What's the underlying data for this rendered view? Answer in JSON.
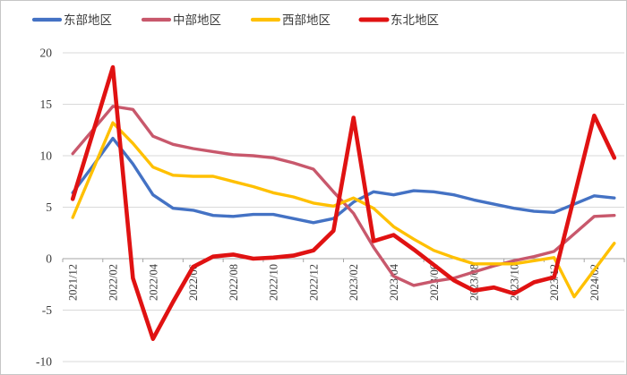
{
  "frame": {
    "background": "#ffffff",
    "border_color": "#c6c6c6"
  },
  "chart_data": {
    "type": "line",
    "title": "",
    "xlabel": "",
    "ylabel": "",
    "grid": "horizontal-only",
    "legend_position": "top",
    "y_axis": {
      "min": -10,
      "max": 20,
      "step": 5,
      "ticks": [
        20,
        15,
        10,
        5,
        0,
        -5,
        -10
      ]
    },
    "x_label_every": 2,
    "x_tick_labels_shown": [
      "2021/12",
      "2022/02",
      "2022/04",
      "2022/06",
      "2022/08",
      "2022/10",
      "2022/12",
      "2023/02",
      "2023/04",
      "2023/06",
      "2023/08",
      "2023/10",
      "2023/12",
      "2024/02"
    ],
    "categories": [
      "2021/12",
      "2022/01",
      "2022/02",
      "2022/03",
      "2022/04",
      "2022/05",
      "2022/06",
      "2022/07",
      "2022/08",
      "2022/09",
      "2022/10",
      "2022/11",
      "2022/12",
      "2023/01",
      "2023/02",
      "2023/03",
      "2023/04",
      "2023/05",
      "2023/06",
      "2023/07",
      "2023/08",
      "2023/09",
      "2023/10",
      "2023/11",
      "2023/12",
      "2024/01",
      "2024/02",
      "2024/03"
    ],
    "series": [
      {
        "name": "东部地区",
        "color": "#4472C4",
        "line_width": 3.4,
        "values": [
          6.4,
          9.0,
          11.7,
          9.2,
          6.2,
          4.9,
          4.7,
          4.2,
          4.1,
          4.3,
          4.3,
          3.9,
          3.5,
          3.9,
          5.5,
          6.5,
          6.2,
          6.6,
          6.5,
          6.2,
          5.7,
          5.3,
          4.9,
          4.6,
          4.5,
          5.3,
          6.1,
          5.9
        ]
      },
      {
        "name": "中部地区",
        "color": "#C8586C",
        "line_width": 3.4,
        "values": [
          10.2,
          12.5,
          14.8,
          14.5,
          11.9,
          11.1,
          10.7,
          10.4,
          10.1,
          10.0,
          9.8,
          9.3,
          8.7,
          6.5,
          4.4,
          1.1,
          -1.7,
          -2.6,
          -2.2,
          -1.9,
          -1.3,
          -0.7,
          -0.2,
          0.2,
          0.7,
          2.4,
          4.1,
          4.2
        ]
      },
      {
        "name": "西部地区",
        "color": "#FFC000",
        "line_width": 3.4,
        "values": [
          4.0,
          8.6,
          13.2,
          11.2,
          8.9,
          8.1,
          8.0,
          8.0,
          7.5,
          7.0,
          6.4,
          6.0,
          5.4,
          5.1,
          5.9,
          4.9,
          3.1,
          1.9,
          0.8,
          0.1,
          -0.5,
          -0.5,
          -0.5,
          -0.2,
          0.1,
          -3.7,
          -1.1,
          1.5
        ]
      },
      {
        "name": "东北地区",
        "color": "#E01212",
        "line_width": 4.6,
        "values": [
          5.8,
          12.2,
          18.6,
          -1.9,
          -7.8,
          -4.2,
          -0.8,
          0.2,
          0.4,
          0.0,
          0.1,
          0.3,
          0.8,
          2.7,
          13.7,
          1.7,
          2.3,
          0.9,
          -0.6,
          -2.1,
          -3.1,
          -2.8,
          -3.4,
          -2.3,
          -1.8,
          6.0,
          13.9,
          9.8
        ]
      }
    ],
    "style": {
      "grid_color": "#D9D9D9",
      "axis_color": "#A6A6A6",
      "text_color": "#3B3B3B",
      "y_label_font_px": 13.5,
      "x_label_font_px": 12.5,
      "legend_font_px": 13.5
    }
  }
}
